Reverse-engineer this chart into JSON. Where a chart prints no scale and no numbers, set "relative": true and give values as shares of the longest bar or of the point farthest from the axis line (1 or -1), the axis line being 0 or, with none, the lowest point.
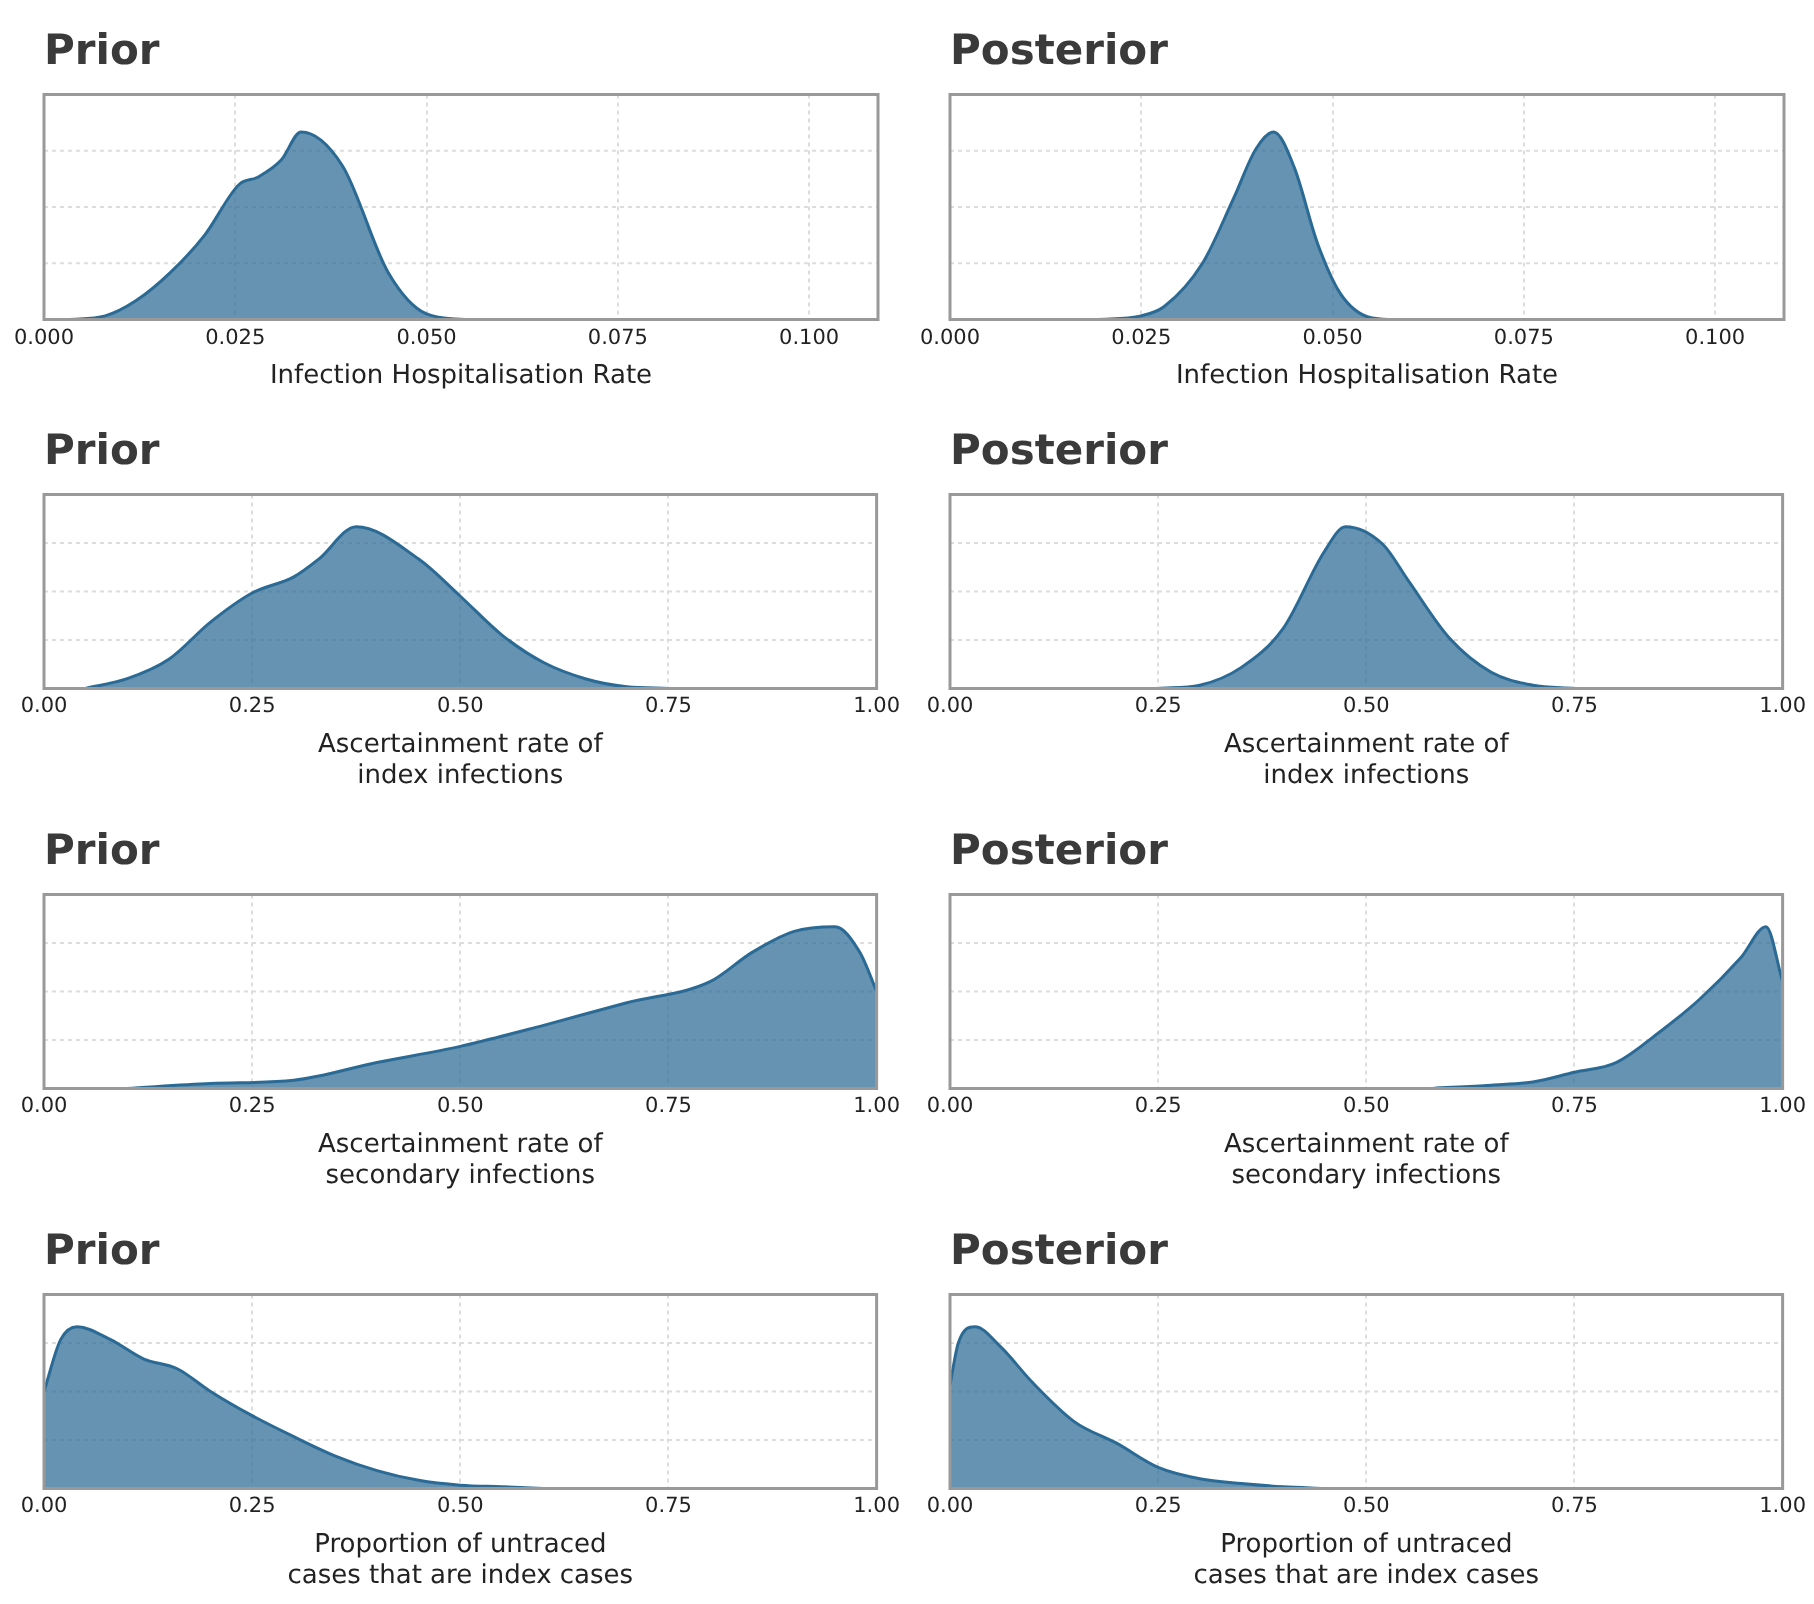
{
  "chart_data": [
    {
      "type": "area",
      "title": "Prior",
      "xlabel": "Infection Hospitalisation Rate",
      "relative": true,
      "grid": true,
      "xlim": [
        0,
        0.109
      ],
      "xticks": [
        {
          "value": 0,
          "label": "0.000"
        },
        {
          "value": 0.025,
          "label": "0.025"
        },
        {
          "value": 0.05,
          "label": "0.050"
        },
        {
          "value": 0.075,
          "label": "0.075"
        },
        {
          "value": 0.1,
          "label": "0.100"
        }
      ],
      "series": [
        {
          "color": "#2b6a94",
          "x": [
            0.003,
            0.008,
            0.012,
            0.0165,
            0.021,
            0.0255,
            0.028,
            0.031,
            0.0336,
            0.039,
            0.045,
            0.05,
            0.055
          ],
          "values": [
            0,
            0.02,
            0.1,
            0.25,
            0.45,
            0.72,
            0.76,
            0.85,
            1,
            0.82,
            0.25,
            0.03,
            0
          ]
        }
      ]
    },
    {
      "type": "area",
      "title": "Posterior",
      "xlabel": "Infection Hospitalisation Rate",
      "relative": true,
      "grid": true,
      "xlim": [
        0,
        0.109
      ],
      "xticks": [
        {
          "value": 0,
          "label": "0.000"
        },
        {
          "value": 0.025,
          "label": "0.025"
        },
        {
          "value": 0.05,
          "label": "0.050"
        },
        {
          "value": 0.075,
          "label": "0.075"
        },
        {
          "value": 0.1,
          "label": "0.100"
        }
      ],
      "series": [
        {
          "color": "#2b6a94",
          "x": [
            0.019,
            0.025,
            0.028,
            0.033,
            0.037,
            0.04,
            0.0423,
            0.045,
            0.048,
            0.051,
            0.055,
            0.058
          ],
          "values": [
            0,
            0.02,
            0.07,
            0.3,
            0.64,
            0.91,
            1,
            0.81,
            0.41,
            0.14,
            0.01,
            0
          ]
        }
      ]
    },
    {
      "type": "area",
      "title": "Prior",
      "xlabel": "Ascertainment rate of\nindex infections",
      "relative": true,
      "grid": true,
      "xlim": [
        0,
        1
      ],
      "xticks": [
        {
          "value": 0,
          "label": "0.00"
        },
        {
          "value": 0.25,
          "label": "0.25"
        },
        {
          "value": 0.5,
          "label": "0.50"
        },
        {
          "value": 0.75,
          "label": "0.75"
        },
        {
          "value": 1,
          "label": "1.00"
        }
      ],
      "series": [
        {
          "color": "#2b6a94",
          "x": [
            0.05,
            0.1,
            0.15,
            0.2,
            0.25,
            0.3,
            0.33,
            0.375,
            0.45,
            0.5,
            0.55,
            0.6,
            0.65,
            0.7,
            0.75
          ],
          "values": [
            0,
            0.06,
            0.18,
            0.41,
            0.59,
            0.69,
            0.8,
            1,
            0.8,
            0.57,
            0.33,
            0.16,
            0.06,
            0.01,
            0
          ]
        }
      ]
    },
    {
      "type": "area",
      "title": "Posterior",
      "xlabel": "Ascertainment rate of\nindex infections",
      "relative": true,
      "grid": true,
      "xlim": [
        0,
        1
      ],
      "xticks": [
        {
          "value": 0,
          "label": "0.00"
        },
        {
          "value": 0.25,
          "label": "0.25"
        },
        {
          "value": 0.5,
          "label": "0.50"
        },
        {
          "value": 0.75,
          "label": "0.75"
        },
        {
          "value": 1,
          "label": "1.00"
        }
      ],
      "series": [
        {
          "color": "#2b6a94",
          "x": [
            0.25,
            0.3,
            0.35,
            0.4,
            0.45,
            0.475,
            0.52,
            0.55,
            0.6,
            0.65,
            0.7,
            0.75
          ],
          "values": [
            0,
            0.02,
            0.13,
            0.37,
            0.85,
            1,
            0.89,
            0.67,
            0.31,
            0.1,
            0.02,
            0
          ]
        }
      ]
    },
    {
      "type": "area",
      "title": "Prior",
      "xlabel": "Ascertainment rate of\nsecondary infections",
      "relative": true,
      "grid": true,
      "xlim": [
        0,
        1
      ],
      "xticks": [
        {
          "value": 0,
          "label": "0.00"
        },
        {
          "value": 0.25,
          "label": "0.25"
        },
        {
          "value": 0.5,
          "label": "0.50"
        },
        {
          "value": 0.75,
          "label": "0.75"
        },
        {
          "value": 1,
          "label": "1.00"
        }
      ],
      "series": [
        {
          "color": "#2b6a94",
          "x": [
            0.1,
            0.2,
            0.3,
            0.4,
            0.5,
            0.6,
            0.7,
            0.8,
            0.85,
            0.9,
            0.95,
            0.98,
            1
          ],
          "values": [
            0,
            0.03,
            0.05,
            0.16,
            0.26,
            0.39,
            0.53,
            0.66,
            0.84,
            0.97,
            1,
            0.84,
            0.6
          ]
        }
      ]
    },
    {
      "type": "area",
      "title": "Posterior",
      "xlabel": "Ascertainment rate of\nsecondary infections",
      "relative": true,
      "grid": true,
      "xlim": [
        0,
        1
      ],
      "xticks": [
        {
          "value": 0,
          "label": "0.00"
        },
        {
          "value": 0.25,
          "label": "0.25"
        },
        {
          "value": 0.5,
          "label": "0.50"
        },
        {
          "value": 0.75,
          "label": "0.75"
        },
        {
          "value": 1,
          "label": "1.00"
        }
      ],
      "series": [
        {
          "color": "#2b6a94",
          "x": [
            0.58,
            0.65,
            0.7,
            0.75,
            0.8,
            0.85,
            0.9,
            0.95,
            0.98,
            1
          ],
          "values": [
            0,
            0.02,
            0.04,
            0.1,
            0.16,
            0.34,
            0.55,
            0.81,
            1,
            0.66
          ]
        }
      ]
    },
    {
      "type": "area",
      "title": "Prior",
      "xlabel": "Proportion of untraced\ncases that are index cases",
      "relative": true,
      "grid": true,
      "xlim": [
        0,
        1
      ],
      "xticks": [
        {
          "value": 0,
          "label": "0.00"
        },
        {
          "value": 0.25,
          "label": "0.25"
        },
        {
          "value": 0.5,
          "label": "0.50"
        },
        {
          "value": 0.75,
          "label": "0.75"
        },
        {
          "value": 1,
          "label": "1.00"
        }
      ],
      "series": [
        {
          "color": "#2b6a94",
          "x": [
            0,
            0.02,
            0.04,
            0.08,
            0.12,
            0.16,
            0.2,
            0.25,
            0.3,
            0.35,
            0.4,
            0.45,
            0.5,
            0.55,
            0.6
          ],
          "values": [
            0.6,
            0.92,
            1,
            0.92,
            0.8,
            0.74,
            0.6,
            0.45,
            0.32,
            0.2,
            0.11,
            0.05,
            0.02,
            0.01,
            0
          ]
        }
      ]
    },
    {
      "type": "area",
      "title": "Posterior",
      "xlabel": "Proportion of untraced\ncases that are index cases",
      "relative": true,
      "grid": true,
      "xlim": [
        0,
        1
      ],
      "xticks": [
        {
          "value": 0,
          "label": "0.00"
        },
        {
          "value": 0.25,
          "label": "0.25"
        },
        {
          "value": 0.5,
          "label": "0.50"
        },
        {
          "value": 0.75,
          "label": "0.75"
        },
        {
          "value": 1,
          "label": "1.00"
        }
      ],
      "series": [
        {
          "color": "#2b6a94",
          "x": [
            0,
            0.01,
            0.03,
            0.06,
            0.1,
            0.15,
            0.2,
            0.25,
            0.3,
            0.35,
            0.4,
            0.45
          ],
          "values": [
            0.64,
            0.9,
            1,
            0.88,
            0.65,
            0.41,
            0.28,
            0.13,
            0.06,
            0.03,
            0.01,
            0
          ]
        }
      ]
    }
  ]
}
